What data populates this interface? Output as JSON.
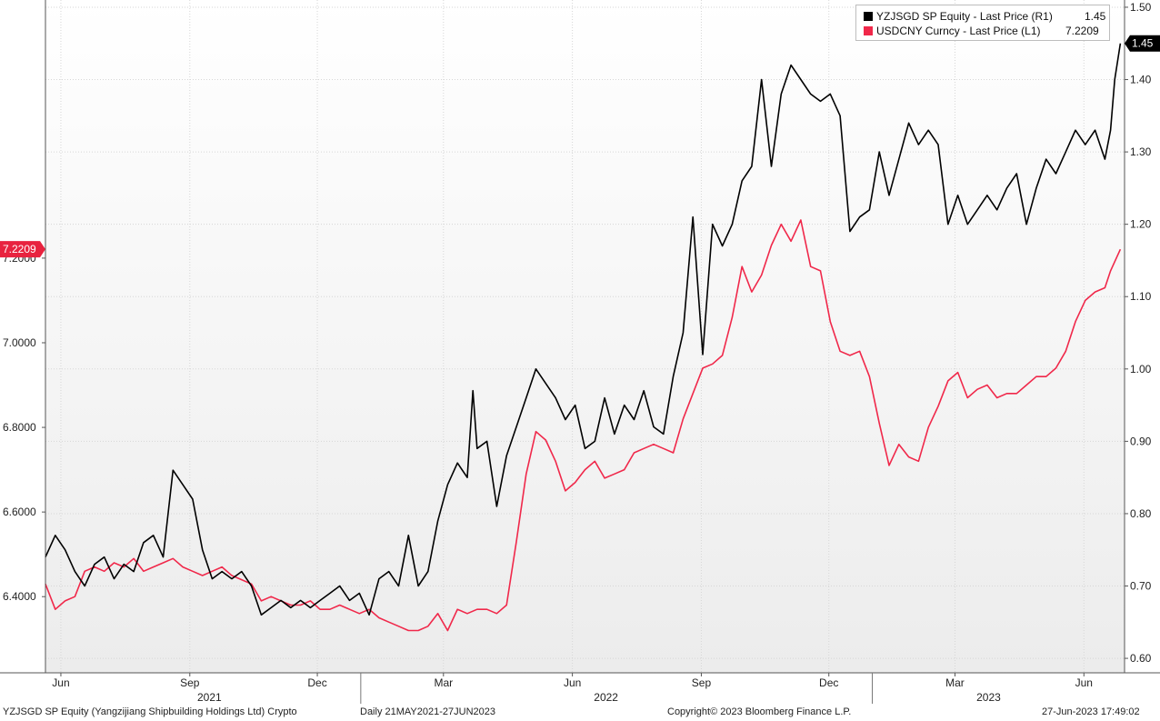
{
  "chart_data": {
    "type": "line",
    "title": "",
    "left_axis": {
      "label": "",
      "ylim": [
        6.22,
        7.81
      ],
      "ticks": [
        "6.4000",
        "6.6000",
        "6.8000",
        "7.0000",
        "7.2000"
      ],
      "tick_values": [
        6.4,
        6.6,
        6.8,
        7.0,
        7.2
      ]
    },
    "right_axis": {
      "label": "",
      "ylim": [
        0.58,
        1.51
      ],
      "ticks": [
        "0.60",
        "0.70",
        "0.80",
        "0.90",
        "1.00",
        "1.10",
        "1.20",
        "1.30",
        "1.40",
        "1.50"
      ],
      "tick_values": [
        0.6,
        0.7,
        0.8,
        0.9,
        1.0,
        1.1,
        1.2,
        1.3,
        1.4,
        1.5
      ]
    },
    "x_axis": {
      "range": [
        "2021-05-21",
        "2023-06-27"
      ],
      "month_ticks": [
        {
          "label": "Jun",
          "date": "2021-06-01"
        },
        {
          "label": "Sep",
          "date": "2021-09-01"
        },
        {
          "label": "Dec",
          "date": "2021-12-01"
        },
        {
          "label": "Mar",
          "date": "2022-03-01"
        },
        {
          "label": "Jun",
          "date": "2022-06-01"
        },
        {
          "label": "Sep",
          "date": "2022-09-01"
        },
        {
          "label": "Dec",
          "date": "2022-12-01"
        },
        {
          "label": "Mar",
          "date": "2023-03-01"
        },
        {
          "label": "Jun",
          "date": "2023-06-01"
        }
      ],
      "year_labels": [
        {
          "label": "2021",
          "date": "2021-09-15"
        },
        {
          "label": "2022",
          "date": "2022-06-25"
        },
        {
          "label": "2023",
          "date": "2023-03-25"
        }
      ],
      "year_separators": [
        "2022-01-01",
        "2023-01-01"
      ]
    },
    "grid": true,
    "legend_position": "top-right",
    "series": [
      {
        "name": "YZJSGD SP Equity - Last Price (R1)",
        "last_value": "1.45",
        "axis": "right",
        "color": "#000000",
        "points": [
          [
            "2021-05-21",
            0.74
          ],
          [
            "2021-05-28",
            0.77
          ],
          [
            "2021-06-04",
            0.75
          ],
          [
            "2021-06-11",
            0.72
          ],
          [
            "2021-06-18",
            0.7
          ],
          [
            "2021-06-25",
            0.73
          ],
          [
            "2021-07-02",
            0.74
          ],
          [
            "2021-07-09",
            0.71
          ],
          [
            "2021-07-16",
            0.73
          ],
          [
            "2021-07-23",
            0.72
          ],
          [
            "2021-07-30",
            0.76
          ],
          [
            "2021-08-06",
            0.77
          ],
          [
            "2021-08-13",
            0.74
          ],
          [
            "2021-08-20",
            0.86
          ],
          [
            "2021-08-27",
            0.84
          ],
          [
            "2021-09-03",
            0.82
          ],
          [
            "2021-09-10",
            0.75
          ],
          [
            "2021-09-17",
            0.71
          ],
          [
            "2021-09-24",
            0.72
          ],
          [
            "2021-10-01",
            0.71
          ],
          [
            "2021-10-08",
            0.72
          ],
          [
            "2021-10-15",
            0.7
          ],
          [
            "2021-10-22",
            0.66
          ],
          [
            "2021-10-29",
            0.67
          ],
          [
            "2021-11-05",
            0.68
          ],
          [
            "2021-11-12",
            0.67
          ],
          [
            "2021-11-19",
            0.68
          ],
          [
            "2021-11-26",
            0.67
          ],
          [
            "2021-12-03",
            0.68
          ],
          [
            "2021-12-10",
            0.69
          ],
          [
            "2021-12-17",
            0.7
          ],
          [
            "2021-12-24",
            0.68
          ],
          [
            "2021-12-31",
            0.69
          ],
          [
            "2022-01-07",
            0.66
          ],
          [
            "2022-01-14",
            0.71
          ],
          [
            "2022-01-21",
            0.72
          ],
          [
            "2022-01-28",
            0.7
          ],
          [
            "2022-02-04",
            0.77
          ],
          [
            "2022-02-11",
            0.7
          ],
          [
            "2022-02-18",
            0.72
          ],
          [
            "2022-02-25",
            0.79
          ],
          [
            "2022-03-04",
            0.84
          ],
          [
            "2022-03-11",
            0.87
          ],
          [
            "2022-03-18",
            0.85
          ],
          [
            "2022-03-22",
            0.97
          ],
          [
            "2022-03-25",
            0.89
          ],
          [
            "2022-04-01",
            0.9
          ],
          [
            "2022-04-08",
            0.81
          ],
          [
            "2022-04-15",
            0.88
          ],
          [
            "2022-04-22",
            0.92
          ],
          [
            "2022-04-29",
            0.96
          ],
          [
            "2022-05-06",
            1.0
          ],
          [
            "2022-05-13",
            0.98
          ],
          [
            "2022-05-20",
            0.96
          ],
          [
            "2022-05-27",
            0.93
          ],
          [
            "2022-06-03",
            0.95
          ],
          [
            "2022-06-10",
            0.89
          ],
          [
            "2022-06-17",
            0.9
          ],
          [
            "2022-06-24",
            0.96
          ],
          [
            "2022-07-01",
            0.91
          ],
          [
            "2022-07-08",
            0.95
          ],
          [
            "2022-07-15",
            0.93
          ],
          [
            "2022-07-22",
            0.97
          ],
          [
            "2022-07-29",
            0.92
          ],
          [
            "2022-08-05",
            0.91
          ],
          [
            "2022-08-12",
            0.99
          ],
          [
            "2022-08-19",
            1.05
          ],
          [
            "2022-08-26",
            1.21
          ],
          [
            "2022-09-02",
            1.02
          ],
          [
            "2022-09-09",
            1.2
          ],
          [
            "2022-09-16",
            1.17
          ],
          [
            "2022-09-23",
            1.2
          ],
          [
            "2022-09-30",
            1.26
          ],
          [
            "2022-10-07",
            1.28
          ],
          [
            "2022-10-14",
            1.4
          ],
          [
            "2022-10-21",
            1.28
          ],
          [
            "2022-10-28",
            1.38
          ],
          [
            "2022-11-04",
            1.42
          ],
          [
            "2022-11-11",
            1.4
          ],
          [
            "2022-11-18",
            1.38
          ],
          [
            "2022-11-25",
            1.37
          ],
          [
            "2022-12-02",
            1.38
          ],
          [
            "2022-12-09",
            1.35
          ],
          [
            "2022-12-16",
            1.19
          ],
          [
            "2022-12-23",
            1.21
          ],
          [
            "2022-12-30",
            1.22
          ],
          [
            "2023-01-06",
            1.3
          ],
          [
            "2023-01-13",
            1.24
          ],
          [
            "2023-01-20",
            1.29
          ],
          [
            "2023-01-27",
            1.34
          ],
          [
            "2023-02-03",
            1.31
          ],
          [
            "2023-02-10",
            1.33
          ],
          [
            "2023-02-17",
            1.31
          ],
          [
            "2023-02-24",
            1.2
          ],
          [
            "2023-03-03",
            1.24
          ],
          [
            "2023-03-10",
            1.2
          ],
          [
            "2023-03-17",
            1.22
          ],
          [
            "2023-03-24",
            1.24
          ],
          [
            "2023-03-31",
            1.22
          ],
          [
            "2023-04-07",
            1.25
          ],
          [
            "2023-04-14",
            1.27
          ],
          [
            "2023-04-21",
            1.2
          ],
          [
            "2023-04-28",
            1.25
          ],
          [
            "2023-05-05",
            1.29
          ],
          [
            "2023-05-12",
            1.27
          ],
          [
            "2023-05-19",
            1.3
          ],
          [
            "2023-05-26",
            1.33
          ],
          [
            "2023-06-02",
            1.31
          ],
          [
            "2023-06-09",
            1.33
          ],
          [
            "2023-06-16",
            1.29
          ],
          [
            "2023-06-20",
            1.33
          ],
          [
            "2023-06-23",
            1.4
          ],
          [
            "2023-06-27",
            1.45
          ]
        ]
      },
      {
        "name": "USDCNY Curncy - Last Price (L1)",
        "last_value": "7.2209",
        "axis": "left",
        "color": "#f0284a",
        "points": [
          [
            "2021-05-21",
            6.43
          ],
          [
            "2021-05-28",
            6.37
          ],
          [
            "2021-06-04",
            6.39
          ],
          [
            "2021-06-11",
            6.4
          ],
          [
            "2021-06-18",
            6.46
          ],
          [
            "2021-06-25",
            6.47
          ],
          [
            "2021-07-02",
            6.46
          ],
          [
            "2021-07-09",
            6.48
          ],
          [
            "2021-07-16",
            6.47
          ],
          [
            "2021-07-23",
            6.49
          ],
          [
            "2021-07-30",
            6.46
          ],
          [
            "2021-08-06",
            6.47
          ],
          [
            "2021-08-13",
            6.48
          ],
          [
            "2021-08-20",
            6.49
          ],
          [
            "2021-08-27",
            6.47
          ],
          [
            "2021-09-03",
            6.46
          ],
          [
            "2021-09-10",
            6.45
          ],
          [
            "2021-09-17",
            6.46
          ],
          [
            "2021-09-24",
            6.47
          ],
          [
            "2021-10-01",
            6.45
          ],
          [
            "2021-10-08",
            6.44
          ],
          [
            "2021-10-15",
            6.43
          ],
          [
            "2021-10-22",
            6.39
          ],
          [
            "2021-10-29",
            6.4
          ],
          [
            "2021-11-05",
            6.39
          ],
          [
            "2021-11-12",
            6.38
          ],
          [
            "2021-11-19",
            6.38
          ],
          [
            "2021-11-26",
            6.39
          ],
          [
            "2021-12-03",
            6.37
          ],
          [
            "2021-12-10",
            6.37
          ],
          [
            "2021-12-17",
            6.38
          ],
          [
            "2021-12-24",
            6.37
          ],
          [
            "2021-12-31",
            6.36
          ],
          [
            "2022-01-07",
            6.37
          ],
          [
            "2022-01-14",
            6.35
          ],
          [
            "2022-01-21",
            6.34
          ],
          [
            "2022-01-28",
            6.33
          ],
          [
            "2022-02-04",
            6.32
          ],
          [
            "2022-02-11",
            6.32
          ],
          [
            "2022-02-18",
            6.33
          ],
          [
            "2022-02-25",
            6.36
          ],
          [
            "2022-03-04",
            6.32
          ],
          [
            "2022-03-11",
            6.37
          ],
          [
            "2022-03-18",
            6.36
          ],
          [
            "2022-03-25",
            6.37
          ],
          [
            "2022-04-01",
            6.37
          ],
          [
            "2022-04-08",
            6.36
          ],
          [
            "2022-04-15",
            6.38
          ],
          [
            "2022-04-22",
            6.53
          ],
          [
            "2022-04-29",
            6.69
          ],
          [
            "2022-05-06",
            6.79
          ],
          [
            "2022-05-13",
            6.77
          ],
          [
            "2022-05-20",
            6.72
          ],
          [
            "2022-05-27",
            6.65
          ],
          [
            "2022-06-03",
            6.67
          ],
          [
            "2022-06-10",
            6.7
          ],
          [
            "2022-06-17",
            6.72
          ],
          [
            "2022-06-24",
            6.68
          ],
          [
            "2022-07-01",
            6.69
          ],
          [
            "2022-07-08",
            6.7
          ],
          [
            "2022-07-15",
            6.74
          ],
          [
            "2022-07-22",
            6.75
          ],
          [
            "2022-07-29",
            6.76
          ],
          [
            "2022-08-05",
            6.75
          ],
          [
            "2022-08-12",
            6.74
          ],
          [
            "2022-08-19",
            6.82
          ],
          [
            "2022-08-26",
            6.88
          ],
          [
            "2022-09-02",
            6.94
          ],
          [
            "2022-09-09",
            6.95
          ],
          [
            "2022-09-16",
            6.97
          ],
          [
            "2022-09-23",
            7.06
          ],
          [
            "2022-09-30",
            7.18
          ],
          [
            "2022-10-07",
            7.12
          ],
          [
            "2022-10-14",
            7.16
          ],
          [
            "2022-10-21",
            7.23
          ],
          [
            "2022-10-28",
            7.28
          ],
          [
            "2022-11-04",
            7.24
          ],
          [
            "2022-11-11",
            7.29
          ],
          [
            "2022-11-18",
            7.18
          ],
          [
            "2022-11-25",
            7.17
          ],
          [
            "2022-12-02",
            7.05
          ],
          [
            "2022-12-09",
            6.98
          ],
          [
            "2022-12-16",
            6.97
          ],
          [
            "2022-12-23",
            6.98
          ],
          [
            "2022-12-30",
            6.92
          ],
          [
            "2023-01-06",
            6.81
          ],
          [
            "2023-01-13",
            6.71
          ],
          [
            "2023-01-20",
            6.76
          ],
          [
            "2023-01-27",
            6.73
          ],
          [
            "2023-02-03",
            6.72
          ],
          [
            "2023-02-10",
            6.8
          ],
          [
            "2023-02-17",
            6.85
          ],
          [
            "2023-02-24",
            6.91
          ],
          [
            "2023-03-03",
            6.93
          ],
          [
            "2023-03-10",
            6.87
          ],
          [
            "2023-03-17",
            6.89
          ],
          [
            "2023-03-24",
            6.9
          ],
          [
            "2023-03-31",
            6.87
          ],
          [
            "2023-04-07",
            6.88
          ],
          [
            "2023-04-14",
            6.88
          ],
          [
            "2023-04-21",
            6.9
          ],
          [
            "2023-04-28",
            6.92
          ],
          [
            "2023-05-05",
            6.92
          ],
          [
            "2023-05-12",
            6.94
          ],
          [
            "2023-05-19",
            6.98
          ],
          [
            "2023-05-26",
            7.05
          ],
          [
            "2023-06-02",
            7.1
          ],
          [
            "2023-06-09",
            7.12
          ],
          [
            "2023-06-16",
            7.13
          ],
          [
            "2023-06-20",
            7.17
          ],
          [
            "2023-06-27",
            7.2209
          ]
        ]
      }
    ]
  },
  "current_value_labels": {
    "left": "7.2209",
    "right": "1.45"
  },
  "footer": {
    "security": "YZJSGD SP Equity (Yangzijiang Shipbuilding Holdings Ltd) Crypto",
    "period": "Daily 21MAY2021-27JUN2023",
    "copyright": "Copyright© 2023 Bloomberg Finance L.P.",
    "timestamp": "27-Jun-2023 17:49:02"
  },
  "colors": {
    "plot_background_top": "#ffffff",
    "plot_background_bottom": "#eeeeee",
    "grid": "#d6d6d6",
    "series_black": "#000000",
    "series_red": "#f0284a",
    "axis_text": "#222222"
  }
}
